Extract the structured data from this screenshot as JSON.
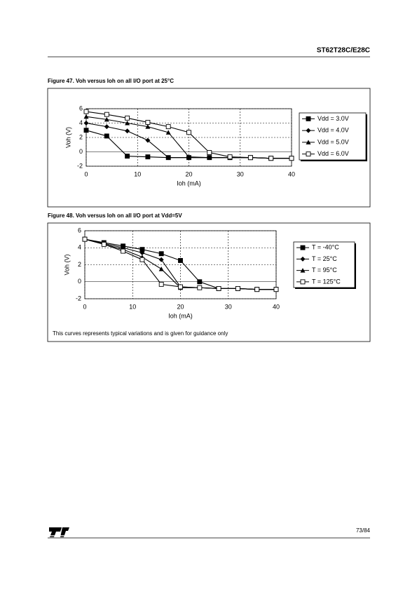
{
  "header": {
    "title": "ST62T28C/E28C"
  },
  "chart_data": [
    {
      "type": "line",
      "title": "Figure 47. Voh versus Ioh on all I/O port at 25°C",
      "x_label": "Ioh (mA)",
      "y_label": "Voh (V)",
      "x": [
        0,
        4,
        8,
        12,
        16,
        20,
        24,
        28,
        32,
        36,
        40
      ],
      "xlim": [
        0,
        40
      ],
      "xticks": [
        0,
        10,
        20,
        30,
        40
      ],
      "ylim": [
        -2,
        6
      ],
      "yticks": [
        -2,
        0,
        2,
        4,
        6
      ],
      "grid": true,
      "legend": "right",
      "series": [
        {
          "name": "Vdd = 3.0V",
          "color": "#000000",
          "marker": "square",
          "values": [
            3.0,
            2.2,
            -0.6,
            -0.7,
            -0.8,
            -0.8,
            -0.8,
            -0.8,
            -0.8,
            -0.9,
            -0.9
          ]
        },
        {
          "name": "Vdd = 4.0V",
          "color": "#000000",
          "marker": "diamond",
          "values": [
            4.0,
            3.5,
            2.9,
            1.6,
            -0.8,
            -0.8,
            -0.8,
            -0.8,
            -0.8,
            -0.9,
            -0.9
          ]
        },
        {
          "name": "Vdd = 5.0V",
          "color": "#000000",
          "marker": "triangle",
          "values": [
            4.9,
            4.5,
            4.0,
            3.5,
            2.7,
            -0.7,
            -0.8,
            -0.8,
            -0.8,
            -0.9,
            -0.9
          ]
        },
        {
          "name": "Vdd = 6.0V",
          "color": "#000000",
          "marker": "open-square",
          "values": [
            5.6,
            5.2,
            4.7,
            4.1,
            3.5,
            2.7,
            -0.1,
            -0.7,
            -0.8,
            -0.9,
            -0.9
          ]
        }
      ]
    },
    {
      "type": "line",
      "title": "Figure 48. Voh versus Ioh on all I/O port at Vdd=5V",
      "x_label": "Ioh (mA)",
      "y_label": "Voh (V)",
      "note": "This curves represents typical variations and is given for guidance only",
      "x": [
        0,
        4,
        8,
        12,
        16,
        20,
        24,
        28,
        32,
        36,
        40
      ],
      "xlim": [
        0,
        40
      ],
      "xticks": [
        0,
        10,
        20,
        30,
        40
      ],
      "ylim": [
        -2,
        6
      ],
      "yticks": [
        -2,
        0,
        2,
        4,
        6
      ],
      "grid": true,
      "legend": "right",
      "series": [
        {
          "name": "T = -40°C",
          "color": "#000000",
          "marker": "square",
          "values": [
            5.0,
            4.6,
            4.2,
            3.8,
            3.3,
            2.5,
            0.0,
            -0.8,
            -0.8,
            -0.9,
            -0.9
          ]
        },
        {
          "name": "T = 25°C",
          "color": "#000000",
          "marker": "diamond",
          "values": [
            5.0,
            4.5,
            4.0,
            3.4,
            2.6,
            -0.6,
            -0.7,
            -0.8,
            -0.8,
            -0.9,
            -0.9
          ]
        },
        {
          "name": "T = 95°C",
          "color": "#000000",
          "marker": "triangle",
          "values": [
            5.0,
            4.4,
            3.8,
            2.9,
            1.5,
            -0.7,
            -0.7,
            -0.8,
            -0.8,
            -0.9,
            -0.9
          ]
        },
        {
          "name": "T = 125°C",
          "color": "#000000",
          "marker": "open-square",
          "values": [
            5.0,
            4.4,
            3.6,
            2.6,
            -0.3,
            -0.6,
            -0.7,
            -0.8,
            -0.8,
            -0.9,
            -0.9
          ]
        }
      ]
    }
  ],
  "footer": {
    "page": "73/84"
  }
}
